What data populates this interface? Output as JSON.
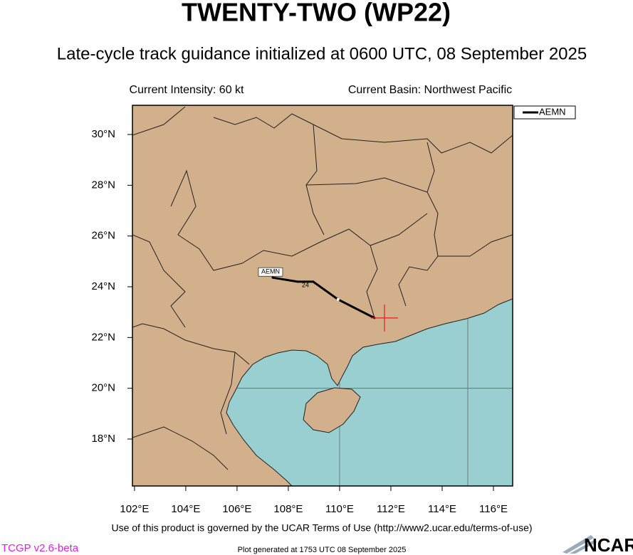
{
  "header": {
    "title": "TWENTY-TWO (WP22)",
    "subtitle": "Late-cycle track guidance initialized at 0600 UTC, 08 September 2025",
    "intensity": "Current Intensity: 60 kt",
    "basin": "Current Basin: Northwest Pacific"
  },
  "map": {
    "xlim": [
      101.92,
      116.75
    ],
    "ylim": [
      16.15,
      31.15
    ],
    "xticks": [
      {
        "value": 102,
        "label": "102°E"
      },
      {
        "value": 104,
        "label": "104°E"
      },
      {
        "value": 106,
        "label": "106°E"
      },
      {
        "value": 108,
        "label": "108°E"
      },
      {
        "value": 110,
        "label": "110°E"
      },
      {
        "value": 112,
        "label": "112°E"
      },
      {
        "value": 114,
        "label": "114°E"
      },
      {
        "value": 116,
        "label": "116°E"
      }
    ],
    "yticks": [
      {
        "value": 18,
        "label": "18°N"
      },
      {
        "value": 20,
        "label": "20°N"
      },
      {
        "value": 22,
        "label": "22°N"
      },
      {
        "value": 24,
        "label": "24°N"
      },
      {
        "value": 26,
        "label": "26°N"
      },
      {
        "value": 28,
        "label": "28°N"
      },
      {
        "value": 30,
        "label": "30°N"
      }
    ],
    "grid_lon": [
      110,
      115
    ],
    "grid_lat": [
      20
    ],
    "current_position": {
      "lon": 111.75,
      "lat": 22.77,
      "color": "#e0201c"
    },
    "series": [
      {
        "name": "AEMN",
        "color": "#000000",
        "lon": [
          107.39,
          108.36,
          108.97,
          109.94,
          111.36
        ],
        "lat": [
          24.36,
          24.2,
          24.2,
          23.5,
          22.77
        ],
        "hour_label": "24"
      }
    ]
  },
  "footer": {
    "terms": "Use of this product is governed by the UCAR Terms of Use (http://www2.ucar.edu/terms-of-use)",
    "version": "TCGP v2.6-beta",
    "generated": "Plot generated at 1753 UTC   08 September 2025",
    "logo": "NCAR"
  }
}
